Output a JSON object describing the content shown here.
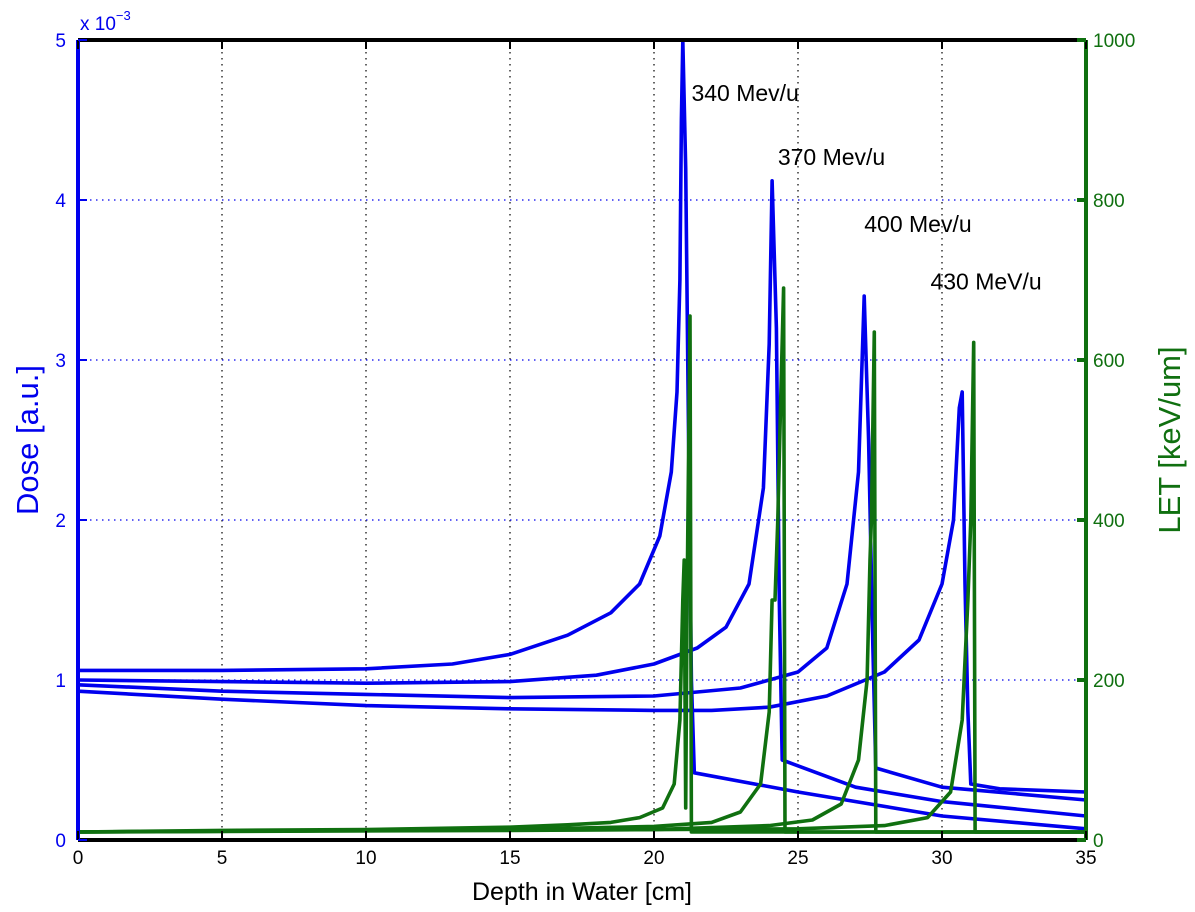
{
  "chart_data": {
    "type": "line",
    "xlabel": "Depth in Water [cm]",
    "ylabel_left": "Dose [a.u.]",
    "ylabel_right": "LET [keV/um]",
    "exponent_label": "x 10",
    "exponent_power": "−3",
    "xlim": [
      0,
      35
    ],
    "ylim_left": [
      0,
      5
    ],
    "ylim_right": [
      0,
      1000
    ],
    "x_ticks": [
      "0",
      "5",
      "10",
      "15",
      "20",
      "25",
      "30",
      "35"
    ],
    "y_left_ticks": [
      "0",
      "1",
      "2",
      "3",
      "4",
      "5"
    ],
    "y_right_ticks": [
      "0",
      "200",
      "400",
      "600",
      "800",
      "1000"
    ],
    "grid": true,
    "colors": {
      "dose": "#0000ee",
      "let": "#107010",
      "axes": "#000000"
    },
    "annotations": [
      {
        "text": "340 Mev/u",
        "x": 21.3,
        "y": 4.62
      },
      {
        "text": "370 Mev/u",
        "x": 24.3,
        "y": 4.22
      },
      {
        "text": "400 Mev/u",
        "x": 27.3,
        "y": 3.8
      },
      {
        "text": "430 MeV/u",
        "x": 29.6,
        "y": 3.44
      }
    ],
    "series": [
      {
        "axis": "left",
        "points": [
          [
            0,
            1.06
          ],
          [
            5,
            1.06
          ],
          [
            10,
            1.07
          ],
          [
            13,
            1.1
          ],
          [
            15,
            1.16
          ],
          [
            17,
            1.28
          ],
          [
            18.5,
            1.42
          ],
          [
            19.5,
            1.6
          ],
          [
            20.2,
            1.9
          ],
          [
            20.6,
            2.3
          ],
          [
            20.8,
            2.8
          ],
          [
            20.9,
            3.5
          ],
          [
            20.95,
            4.5
          ],
          [
            21.0,
            5.0
          ],
          [
            21.1,
            4.2
          ],
          [
            21.2,
            2.5
          ],
          [
            21.3,
            1.0
          ],
          [
            21.4,
            0.42
          ],
          [
            25,
            0.3
          ],
          [
            30,
            0.15
          ],
          [
            35,
            0.07
          ]
        ]
      },
      {
        "axis": "left",
        "points": [
          [
            0,
            1.0
          ],
          [
            5,
            0.99
          ],
          [
            10,
            0.98
          ],
          [
            15,
            0.99
          ],
          [
            18,
            1.03
          ],
          [
            20,
            1.1
          ],
          [
            21.5,
            1.2
          ],
          [
            22.5,
            1.33
          ],
          [
            23.3,
            1.6
          ],
          [
            23.8,
            2.2
          ],
          [
            24.0,
            3.1
          ],
          [
            24.1,
            4.12
          ],
          [
            24.25,
            3.2
          ],
          [
            24.35,
            1.5
          ],
          [
            24.45,
            0.5
          ],
          [
            27,
            0.33
          ],
          [
            30,
            0.24
          ],
          [
            35,
            0.15
          ]
        ]
      },
      {
        "axis": "left",
        "points": [
          [
            0,
            0.97
          ],
          [
            5,
            0.93
          ],
          [
            10,
            0.91
          ],
          [
            15,
            0.89
          ],
          [
            20,
            0.9
          ],
          [
            23,
            0.95
          ],
          [
            25,
            1.05
          ],
          [
            26,
            1.2
          ],
          [
            26.7,
            1.6
          ],
          [
            27.1,
            2.3
          ],
          [
            27.3,
            3.4
          ],
          [
            27.45,
            2.5
          ],
          [
            27.6,
            1.2
          ],
          [
            27.7,
            0.45
          ],
          [
            30,
            0.33
          ],
          [
            35,
            0.25
          ]
        ]
      },
      {
        "axis": "left",
        "points": [
          [
            0,
            0.93
          ],
          [
            5,
            0.88
          ],
          [
            10,
            0.84
          ],
          [
            15,
            0.82
          ],
          [
            20,
            0.81
          ],
          [
            22,
            0.81
          ],
          [
            24,
            0.83
          ],
          [
            26,
            0.9
          ],
          [
            28,
            1.05
          ],
          [
            29.2,
            1.25
          ],
          [
            30,
            1.6
          ],
          [
            30.4,
            2.0
          ],
          [
            30.6,
            2.7
          ],
          [
            30.7,
            2.8
          ],
          [
            30.8,
            1.6
          ],
          [
            30.9,
            0.8
          ],
          [
            31.0,
            0.35
          ],
          [
            32,
            0.32
          ],
          [
            35,
            0.3
          ]
        ]
      },
      {
        "axis": "right",
        "points": [
          [
            0,
            10
          ],
          [
            5,
            12
          ],
          [
            10,
            13
          ],
          [
            15,
            16
          ],
          [
            17,
            19
          ],
          [
            18.5,
            22
          ],
          [
            19.5,
            28
          ],
          [
            20.3,
            40
          ],
          [
            20.7,
            70
          ],
          [
            20.9,
            150
          ],
          [
            21.0,
            300
          ],
          [
            21.05,
            350
          ],
          [
            21.1,
            40
          ],
          [
            21.15,
            300
          ],
          [
            21.25,
            655
          ],
          [
            21.3,
            10
          ],
          [
            35,
            10
          ]
        ]
      },
      {
        "axis": "right",
        "points": [
          [
            0,
            10
          ],
          [
            10,
            12
          ],
          [
            15,
            13
          ],
          [
            20,
            17
          ],
          [
            22,
            22
          ],
          [
            23,
            35
          ],
          [
            23.7,
            70
          ],
          [
            24.0,
            160
          ],
          [
            24.1,
            300
          ],
          [
            24.2,
            300
          ],
          [
            24.3,
            400
          ],
          [
            24.4,
            550
          ],
          [
            24.5,
            690
          ],
          [
            24.55,
            10
          ],
          [
            35,
            10
          ]
        ]
      },
      {
        "axis": "right",
        "points": [
          [
            0,
            10
          ],
          [
            10,
            12
          ],
          [
            20,
            13
          ],
          [
            24,
            18
          ],
          [
            25.5,
            25
          ],
          [
            26.5,
            45
          ],
          [
            27.1,
            100
          ],
          [
            27.4,
            200
          ],
          [
            27.5,
            350
          ],
          [
            27.55,
            400
          ],
          [
            27.65,
            635
          ],
          [
            27.7,
            10
          ],
          [
            35,
            10
          ]
        ]
      },
      {
        "axis": "right",
        "points": [
          [
            0,
            10
          ],
          [
            15,
            12
          ],
          [
            25,
            14
          ],
          [
            28,
            18
          ],
          [
            29.5,
            28
          ],
          [
            30.3,
            60
          ],
          [
            30.7,
            150
          ],
          [
            30.9,
            300
          ],
          [
            31.0,
            400
          ],
          [
            31.1,
            622
          ],
          [
            31.15,
            10
          ],
          [
            35,
            10
          ]
        ]
      }
    ]
  }
}
